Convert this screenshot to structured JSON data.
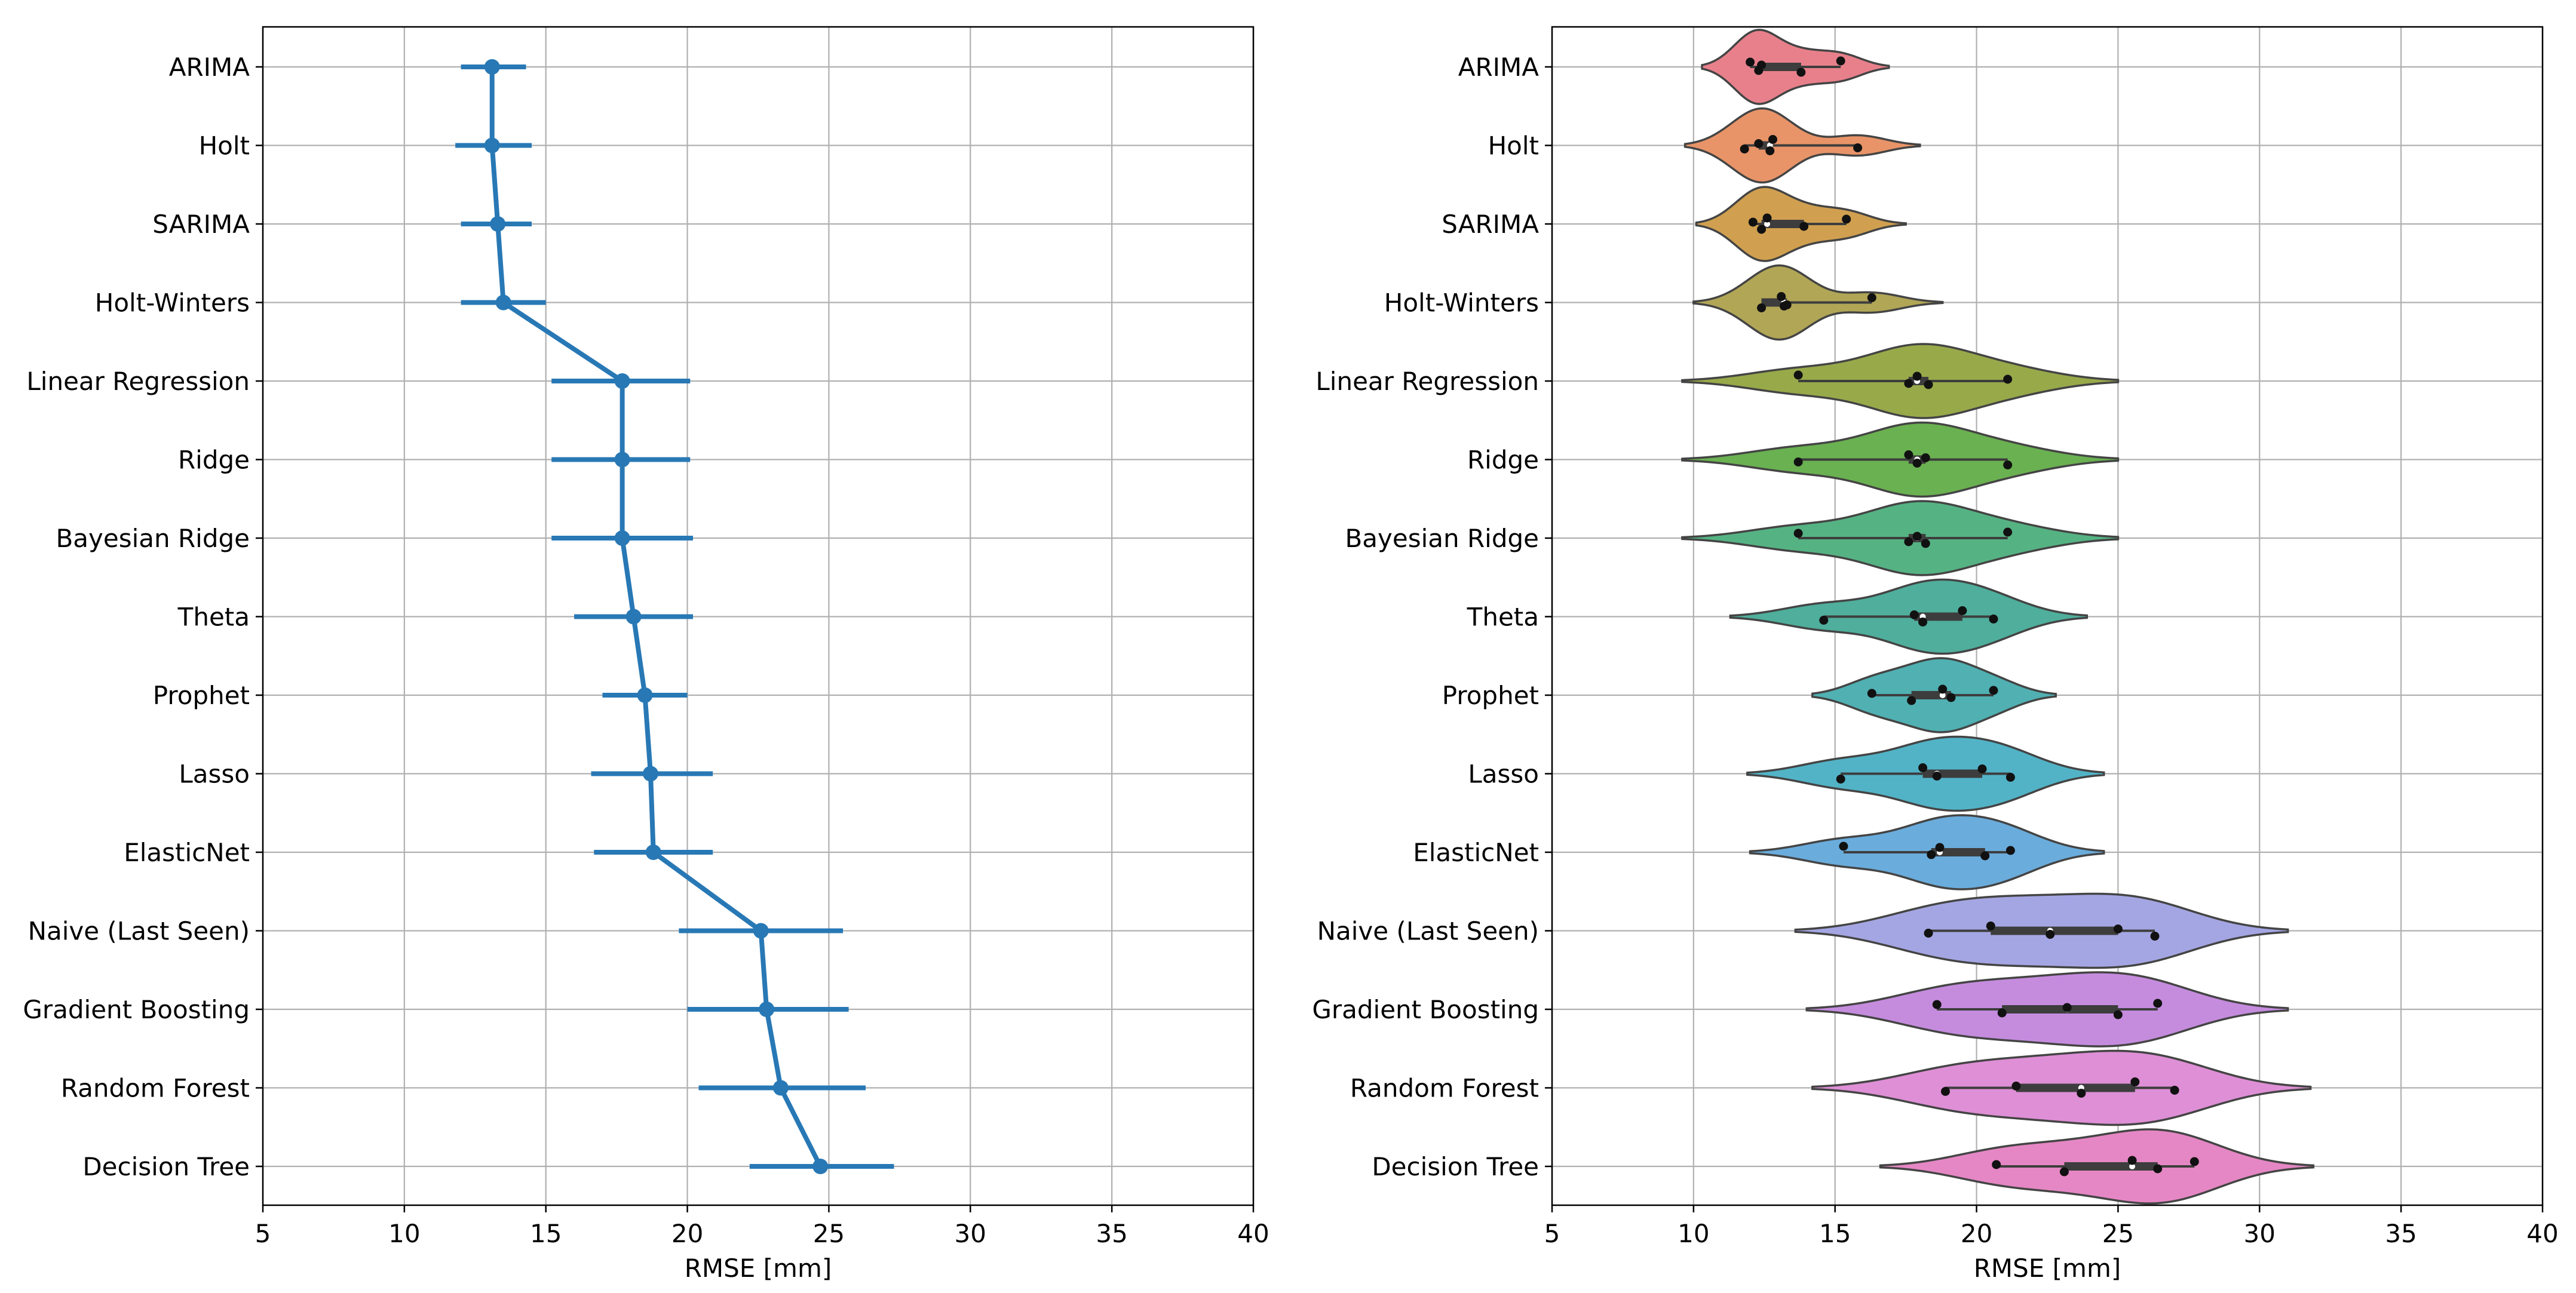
{
  "chart_data": [
    {
      "type": "pointplot",
      "xlabel": "RMSE [mm]",
      "xlim": [
        5,
        40
      ],
      "xticks": [
        5,
        10,
        15,
        20,
        25,
        30,
        35,
        40
      ],
      "grid": true,
      "color": "#2878b5",
      "categories": [
        "ARIMA",
        "Holt",
        "SARIMA",
        "Holt-Winters",
        "Linear Regression",
        "Ridge",
        "Bayesian Ridge",
        "Theta",
        "Prophet",
        "Lasso",
        "ElasticNet",
        "Naive (Last Seen)",
        "Gradient Boosting",
        "Random Forest",
        "Decision Tree"
      ],
      "mean": [
        13.1,
        13.1,
        13.3,
        13.5,
        17.7,
        17.7,
        17.7,
        18.1,
        18.5,
        18.7,
        18.8,
        22.6,
        22.8,
        23.3,
        24.7
      ],
      "ci_low": [
        12.0,
        11.8,
        12.0,
        12.0,
        15.2,
        15.2,
        15.2,
        16.0,
        17.0,
        16.6,
        16.7,
        19.7,
        20.0,
        20.4,
        22.2
      ],
      "ci_high": [
        14.3,
        14.5,
        14.5,
        15.0,
        20.1,
        20.1,
        20.2,
        20.2,
        20.0,
        20.9,
        20.9,
        25.5,
        25.7,
        26.3,
        27.3
      ]
    },
    {
      "type": "violin",
      "xlabel": "RMSE [mm]",
      "xlim": [
        5,
        40
      ],
      "xticks": [
        5,
        10,
        15,
        20,
        25,
        30,
        35,
        40
      ],
      "grid": true,
      "categories": [
        "ARIMA",
        "Holt",
        "SARIMA",
        "Holt-Winters",
        "Linear Regression",
        "Ridge",
        "Bayesian Ridge",
        "Theta",
        "Prophet",
        "Lasso",
        "ElasticNet",
        "Naive (Last Seen)",
        "Gradient Boosting",
        "Random Forest",
        "Decision Tree"
      ],
      "colors": [
        "#e8808b",
        "#e89468",
        "#d0a050",
        "#b1a656",
        "#98a94a",
        "#6ab151",
        "#55b383",
        "#4fae9c",
        "#50b0b2",
        "#52b3c7",
        "#6aacdc",
        "#a4a6e3",
        "#c58cde",
        "#de8fd6",
        "#e587c4"
      ],
      "points": [
        [
          12.0,
          12.3,
          12.4,
          13.8,
          15.2
        ],
        [
          11.8,
          12.3,
          12.7,
          12.8,
          15.8
        ],
        [
          12.1,
          12.4,
          12.6,
          13.9,
          15.4
        ],
        [
          12.4,
          13.1,
          13.3,
          16.3,
          13.2
        ],
        [
          13.7,
          17.6,
          17.9,
          18.3,
          21.1
        ],
        [
          13.7,
          17.6,
          17.9,
          18.2,
          21.1
        ],
        [
          13.7,
          17.6,
          17.9,
          18.2,
          21.1
        ],
        [
          14.6,
          17.8,
          18.1,
          19.5,
          20.6
        ],
        [
          16.3,
          17.7,
          18.8,
          19.1,
          20.6
        ],
        [
          15.2,
          18.1,
          18.6,
          20.2,
          21.2
        ],
        [
          15.3,
          18.4,
          18.7,
          20.3,
          21.2
        ],
        [
          18.3,
          20.5,
          22.6,
          25.0,
          26.3
        ],
        [
          18.6,
          20.9,
          23.2,
          25.0,
          26.4
        ],
        [
          18.9,
          21.4,
          23.7,
          25.6,
          27.0
        ],
        [
          20.7,
          23.1,
          25.5,
          26.4,
          27.7
        ]
      ],
      "kde_range": [
        [
          10.3,
          16.9
        ],
        [
          9.7,
          18.0
        ],
        [
          10.1,
          17.5
        ],
        [
          10.0,
          18.8
        ],
        [
          9.6,
          25.0
        ],
        [
          9.6,
          25.0
        ],
        [
          9.6,
          25.0
        ],
        [
          11.3,
          23.9
        ],
        [
          14.2,
          22.8
        ],
        [
          11.9,
          24.5
        ],
        [
          12.0,
          24.5
        ],
        [
          13.6,
          31.0
        ],
        [
          14.0,
          31.0
        ],
        [
          14.2,
          31.8
        ],
        [
          16.6,
          31.9
        ]
      ],
      "iqr": [
        [
          12.3,
          13.8
        ],
        [
          12.3,
          12.8
        ],
        [
          12.4,
          13.9
        ],
        [
          12.4,
          13.3
        ],
        [
          17.6,
          18.3
        ],
        [
          17.6,
          18.2
        ],
        [
          17.6,
          18.2
        ],
        [
          17.8,
          19.5
        ],
        [
          17.7,
          19.1
        ],
        [
          18.1,
          20.2
        ],
        [
          18.4,
          20.3
        ],
        [
          20.5,
          25.0
        ],
        [
          20.9,
          25.0
        ],
        [
          21.4,
          25.6
        ],
        [
          23.1,
          26.4
        ]
      ],
      "median": [
        12.4,
        12.7,
        12.6,
        13.2,
        17.9,
        17.9,
        17.9,
        18.1,
        18.8,
        18.6,
        18.7,
        22.6,
        23.2,
        23.7,
        25.5
      ]
    }
  ]
}
